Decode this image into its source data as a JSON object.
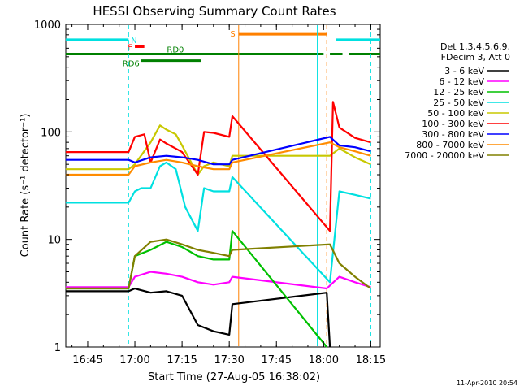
{
  "chart_data": {
    "type": "line",
    "title": "HESSI Observing Summary Count Rates",
    "xlabel": "Start Time (27-Aug-05 16:38:02)",
    "ylabel": "Count Rate (s⁻¹ detector⁻¹)",
    "yscale": "log",
    "ylim": [
      1,
      1000
    ],
    "xlim": [
      "16:38:02",
      "18:18:00"
    ],
    "grid": false,
    "legend_placement": "right",
    "x_ticks": [
      "16:45",
      "17:00",
      "17:15",
      "17:30",
      "17:45",
      "18:00",
      "18:15"
    ],
    "y_ticks": [
      "1",
      "10",
      "100",
      "1000"
    ],
    "legend_header": [
      "Det 1,3,4,5,6,9,",
      "FDecim 3, Att 0"
    ],
    "series": [
      {
        "name": "3 - 6 keV",
        "color": "#000000",
        "points": [
          [
            "16:38",
            3.3
          ],
          [
            "16:58",
            3.3
          ],
          [
            "17:00",
            3.5
          ],
          [
            "17:05",
            3.2
          ],
          [
            "17:10",
            3.3
          ],
          [
            "17:15",
            3.0
          ],
          [
            "17:20",
            1.6
          ],
          [
            "17:25",
            1.4
          ],
          [
            "17:30",
            1.3
          ],
          [
            "17:31",
            2.5
          ],
          [
            "18:01",
            3.2
          ],
          [
            "18:02",
            1.0
          ]
        ]
      },
      {
        "name": "6 - 12 keV",
        "color": "#ff00ff",
        "points": [
          [
            "16:38",
            3.6
          ],
          [
            "16:58",
            3.6
          ],
          [
            "17:00",
            4.5
          ],
          [
            "17:05",
            5.0
          ],
          [
            "17:10",
            4.8
          ],
          [
            "17:15",
            4.5
          ],
          [
            "17:20",
            4.0
          ],
          [
            "17:25",
            3.8
          ],
          [
            "17:30",
            4.0
          ],
          [
            "17:31",
            4.5
          ],
          [
            "18:01",
            3.5
          ],
          [
            "18:05",
            4.5
          ],
          [
            "18:10",
            4.0
          ],
          [
            "18:15",
            3.6
          ]
        ]
      },
      {
        "name": "12 - 25 keV",
        "color": "#00c000",
        "points": [
          [
            "16:38",
            3.5
          ],
          [
            "16:58",
            3.5
          ],
          [
            "17:00",
            7.0
          ],
          [
            "17:05",
            8.0
          ],
          [
            "17:10",
            9.5
          ],
          [
            "17:15",
            8.5
          ],
          [
            "17:20",
            7.0
          ],
          [
            "17:25",
            6.5
          ],
          [
            "17:30",
            6.5
          ],
          [
            "17:31",
            12.0
          ],
          [
            "18:01",
            1.0
          ]
        ]
      },
      {
        "name": "25 - 50 keV",
        "color": "#00e0e0",
        "points": [
          [
            "16:38",
            22
          ],
          [
            "16:58",
            22
          ],
          [
            "17:00",
            28
          ],
          [
            "17:02",
            30
          ],
          [
            "17:05",
            30
          ],
          [
            "17:08",
            48
          ],
          [
            "17:10",
            52
          ],
          [
            "17:13",
            45
          ],
          [
            "17:16",
            20
          ],
          [
            "17:20",
            12
          ],
          [
            "17:22",
            30
          ],
          [
            "17:25",
            28
          ],
          [
            "17:30",
            28
          ],
          [
            "17:31",
            38
          ],
          [
            "18:02",
            4.0
          ],
          [
            "18:05",
            28
          ],
          [
            "18:10",
            26
          ],
          [
            "18:15",
            24
          ]
        ]
      },
      {
        "name": "50 - 100 keV",
        "color": "#c8c800",
        "points": [
          [
            "16:38",
            45
          ],
          [
            "16:58",
            45
          ],
          [
            "17:00",
            50
          ],
          [
            "17:05",
            80
          ],
          [
            "17:08",
            115
          ],
          [
            "17:10",
            105
          ],
          [
            "17:13",
            95
          ],
          [
            "17:15",
            75
          ],
          [
            "17:20",
            40
          ],
          [
            "17:22",
            48
          ],
          [
            "17:25",
            52
          ],
          [
            "17:30",
            48
          ],
          [
            "17:31",
            60
          ],
          [
            "18:02",
            60
          ],
          [
            "18:05",
            70
          ],
          [
            "18:10",
            58
          ],
          [
            "18:15",
            50
          ]
        ]
      },
      {
        "name": "100 - 300 keV",
        "color": "#ff0000",
        "points": [
          [
            "16:38",
            65
          ],
          [
            "16:58",
            65
          ],
          [
            "17:00",
            90
          ],
          [
            "17:03",
            95
          ],
          [
            "17:05",
            52
          ],
          [
            "17:08",
            85
          ],
          [
            "17:10",
            78
          ],
          [
            "17:13",
            70
          ],
          [
            "17:15",
            65
          ],
          [
            "17:20",
            40
          ],
          [
            "17:22",
            100
          ],
          [
            "17:25",
            98
          ],
          [
            "17:30",
            90
          ],
          [
            "17:31",
            140
          ],
          [
            "18:02",
            12
          ],
          [
            "18:03",
            190
          ],
          [
            "18:05",
            110
          ],
          [
            "18:10",
            88
          ],
          [
            "18:15",
            80
          ]
        ]
      },
      {
        "name": "300 - 800 keV",
        "color": "#0000ff",
        "points": [
          [
            "16:38",
            55
          ],
          [
            "16:58",
            55
          ],
          [
            "17:00",
            52
          ],
          [
            "17:05",
            58
          ],
          [
            "17:10",
            60
          ],
          [
            "17:15",
            58
          ],
          [
            "17:20",
            55
          ],
          [
            "17:25",
            50
          ],
          [
            "17:30",
            50
          ],
          [
            "17:31",
            55
          ],
          [
            "18:02",
            90
          ],
          [
            "18:05",
            75
          ],
          [
            "18:10",
            72
          ],
          [
            "18:15",
            66
          ]
        ]
      },
      {
        "name": "800 - 7000 keV",
        "color": "#ff8c00",
        "points": [
          [
            "16:38",
            40
          ],
          [
            "16:58",
            40
          ],
          [
            "17:00",
            48
          ],
          [
            "17:05",
            52
          ],
          [
            "17:10",
            55
          ],
          [
            "17:15",
            52
          ],
          [
            "17:20",
            48
          ],
          [
            "17:25",
            45
          ],
          [
            "17:30",
            45
          ],
          [
            "17:31",
            52
          ],
          [
            "18:02",
            80
          ],
          [
            "18:05",
            72
          ],
          [
            "18:10",
            66
          ],
          [
            "18:15",
            60
          ]
        ]
      },
      {
        "name": "7000 - 20000 keV",
        "color": "#808000",
        "points": [
          [
            "16:38",
            3.5
          ],
          [
            "16:58",
            3.5
          ],
          [
            "17:00",
            7.0
          ],
          [
            "17:05",
            9.5
          ],
          [
            "17:10",
            10.0
          ],
          [
            "17:15",
            9.0
          ],
          [
            "17:20",
            8.0
          ],
          [
            "17:25",
            7.5
          ],
          [
            "17:30",
            7.0
          ],
          [
            "17:31",
            8.0
          ],
          [
            "18:02",
            9.0
          ],
          [
            "18:05",
            6.0
          ],
          [
            "18:10",
            4.5
          ],
          [
            "18:15",
            3.5
          ]
        ]
      }
    ],
    "vertical_markers": [
      {
        "time": "17:33",
        "style": "solid",
        "color": "#ff8000"
      },
      {
        "time": "18:01",
        "style": "dashed",
        "color": "#ff8000"
      },
      {
        "time": "16:58",
        "style": "dashed",
        "color": "#00e0e0"
      },
      {
        "time": "17:58",
        "style": "solid",
        "color": "#00e0e0"
      },
      {
        "time": "18:15",
        "style": "dashed",
        "color": "#00e0e0"
      }
    ],
    "flag_bars": [
      {
        "label": "N",
        "color": "#00e0e0",
        "y": 720,
        "segments": [
          [
            "16:38",
            "16:58"
          ],
          [
            "18:04",
            "18:18"
          ]
        ]
      },
      {
        "label": "S",
        "color": "#ff8000",
        "y": 810,
        "segments": [
          [
            "17:33",
            "18:01"
          ]
        ]
      },
      {
        "label": "F",
        "color": "#ff0000",
        "y": 620,
        "segments": [
          [
            "17:00",
            "17:03"
          ]
        ]
      },
      {
        "label": "RD0",
        "color": "#008000",
        "y": 530,
        "segments": [
          [
            "16:38",
            "17:21"
          ],
          [
            "17:21",
            "18:00"
          ],
          [
            "18:02",
            "18:06"
          ],
          [
            "18:08",
            "18:18"
          ]
        ]
      },
      {
        "label": "RD6",
        "color": "#008000",
        "y": 460,
        "segments": [
          [
            "17:02",
            "17:21"
          ]
        ]
      }
    ],
    "flag_labels": [
      "N",
      "S",
      "F",
      "RD0",
      "RD6"
    ]
  },
  "footer": {
    "timestamp": "11-Apr-2010 20:54"
  }
}
